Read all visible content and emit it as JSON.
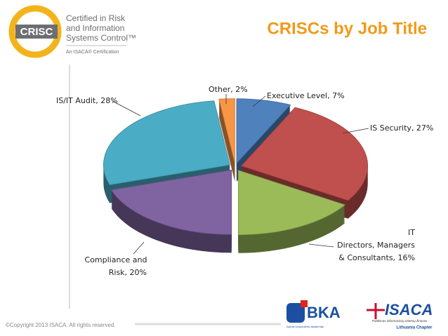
{
  "slide": {
    "logo_mark": "CRISC",
    "logo_lines": [
      "Certified in Risk",
      "and Information",
      "Systems Control™"
    ],
    "logo_tagline": "An ISACA® Certification",
    "footer": "©Copyright 2013 ISACA. All rights reserved.",
    "partner_logo": "BKA",
    "partner_tagline": "Isacaš kompiuterių akademija",
    "isaca_logo": "ISACA",
    "isaca_tagline": "Patikimas informacinių sistemų žinovas",
    "isaca_chapter": "Lithuania Chapter"
  },
  "chart_data": {
    "type": "pie",
    "title": "CRISCs by Job Title",
    "values": [
      7,
      27,
      16,
      20,
      28,
      2
    ],
    "value_labels": [
      [
        "Executive Level, 7%"
      ],
      [
        "IS Security, 27%"
      ],
      [
        "IT",
        "Directors, Managers",
        "& Consultants, 16%"
      ],
      [
        "Compliance and",
        "Risk, 20%"
      ],
      [
        "IS/IT Audit, 28%"
      ],
      [
        "Other, 2%"
      ]
    ],
    "colors": [
      "#4f81bd",
      "#c0504d",
      "#9bbb59",
      "#8064a2",
      "#4bacc6",
      "#f79646"
    ]
  }
}
